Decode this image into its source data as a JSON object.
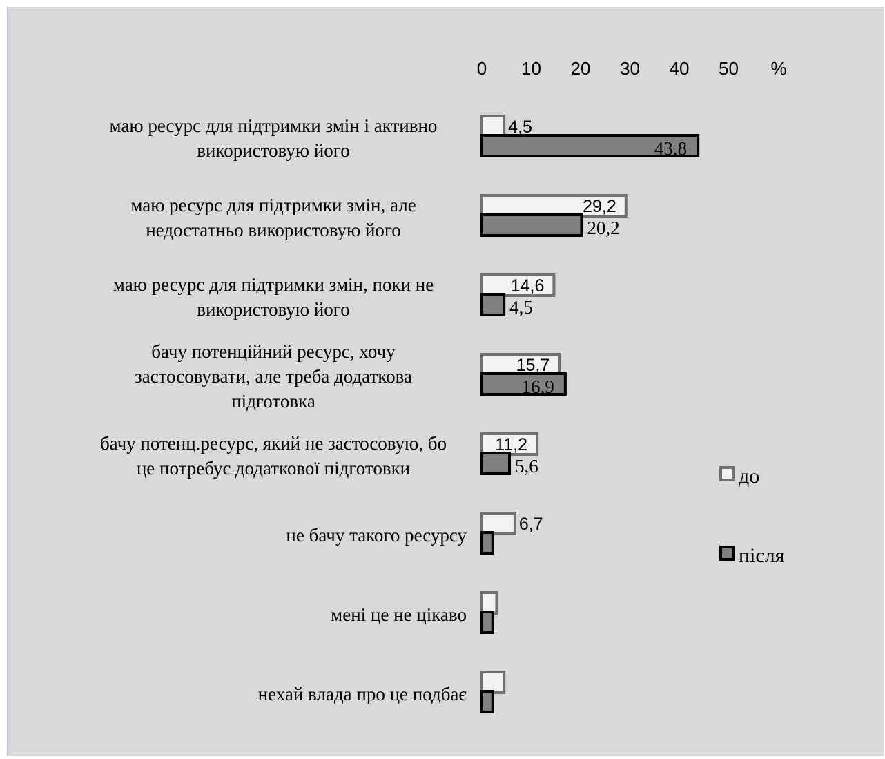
{
  "chart_data": {
    "type": "bar",
    "orientation": "horizontal",
    "axis_position": "top",
    "xlim": [
      0,
      50
    ],
    "x_ticks": [
      "0",
      "10",
      "20",
      "30",
      "40",
      "50"
    ],
    "unit_label": "%",
    "grid": false,
    "legend_position": "right",
    "categories": [
      [
        "маю ресурс для підтримки змін і активно",
        "використовую його"
      ],
      [
        "маю ресурс для підтримки змін, але",
        "недостатньо використовую його"
      ],
      [
        "маю ресурс для підтримки змін, поки не",
        "використовую його"
      ],
      [
        "бачу потенційний ресурс,  хочу",
        "застосовувати, але треба додаткова",
        "підготовка"
      ],
      [
        "бачу потенц.ресурс, який не застосовую, бо",
        "це потребує додаткової підготовки"
      ],
      [
        "не бачу такого ресурсу"
      ],
      [
        "мені це не цікаво"
      ],
      [
        "нехай влада про це подбає"
      ]
    ],
    "series": [
      {
        "name": "до",
        "color": "#f2f2f2",
        "border": "#707070",
        "values": [
          4.5,
          29.2,
          14.6,
          15.7,
          11.2,
          6.7,
          3,
          4.5
        ],
        "labels": [
          "4,5",
          "29,2",
          "14,6",
          "15,7",
          "11,2",
          "6,7",
          "",
          ""
        ]
      },
      {
        "name": "після",
        "color": "#808080",
        "border": "#000000",
        "values": [
          43.8,
          20.2,
          4.5,
          16.9,
          5.6,
          2.2,
          2.2,
          2.2
        ],
        "labels": [
          "43,8",
          "20,2",
          "4,5",
          "16,9",
          "5,6",
          "",
          "",
          ""
        ]
      }
    ]
  }
}
